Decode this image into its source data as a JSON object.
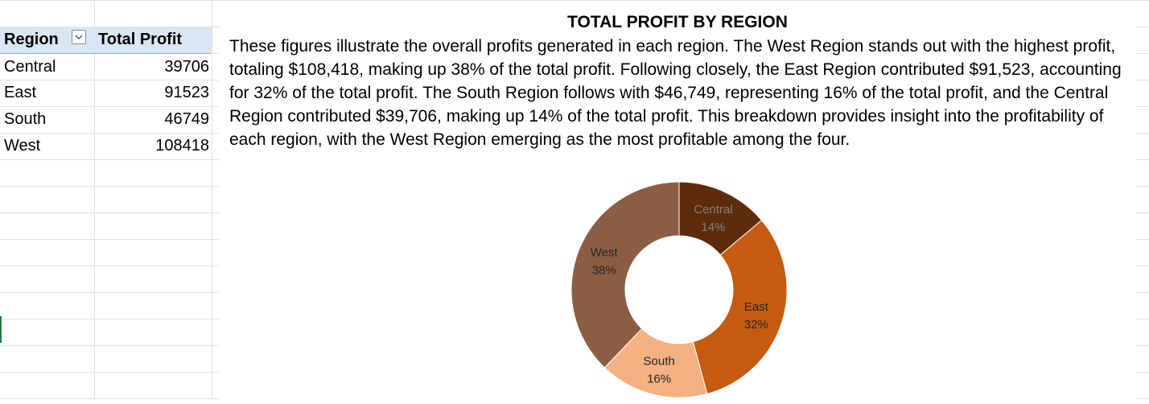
{
  "pivot": {
    "header": {
      "region": "Region",
      "total_profit": "Total Profit"
    },
    "rows": [
      {
        "region": "Central",
        "profit": "39706"
      },
      {
        "region": "East",
        "profit": "91523"
      },
      {
        "region": "South",
        "profit": "46749"
      },
      {
        "region": "West",
        "profit": "108418"
      }
    ],
    "filter_icon": "chevron-down-icon"
  },
  "chart_data": {
    "type": "pie",
    "title": "TOTAL PROFIT BY REGION",
    "description": "These figures illustrate the overall profits generated in each region. The West Region stands out with the highest profit, totaling $108,418, making up 38% of the total profit. Following closely, the East Region contributed $91,523, accounting for 32% of the total profit. The South Region follows with $46,749, representing 16% of the total profit, and the Central Region contributed $39,706, making up 14% of the total profit. This breakdown provides insight into the profitability of each region, with the West Region emerging as the most profitable among the four.",
    "donut": true,
    "categories": [
      "Central",
      "East",
      "South",
      "West"
    ],
    "values": [
      39706,
      91523,
      46749,
      108418
    ],
    "labels": [
      "14%",
      "32%",
      "16%",
      "38%"
    ],
    "colors": [
      "#5e2c0c",
      "#c55a11",
      "#f4b183",
      "#8b5e44"
    ]
  }
}
